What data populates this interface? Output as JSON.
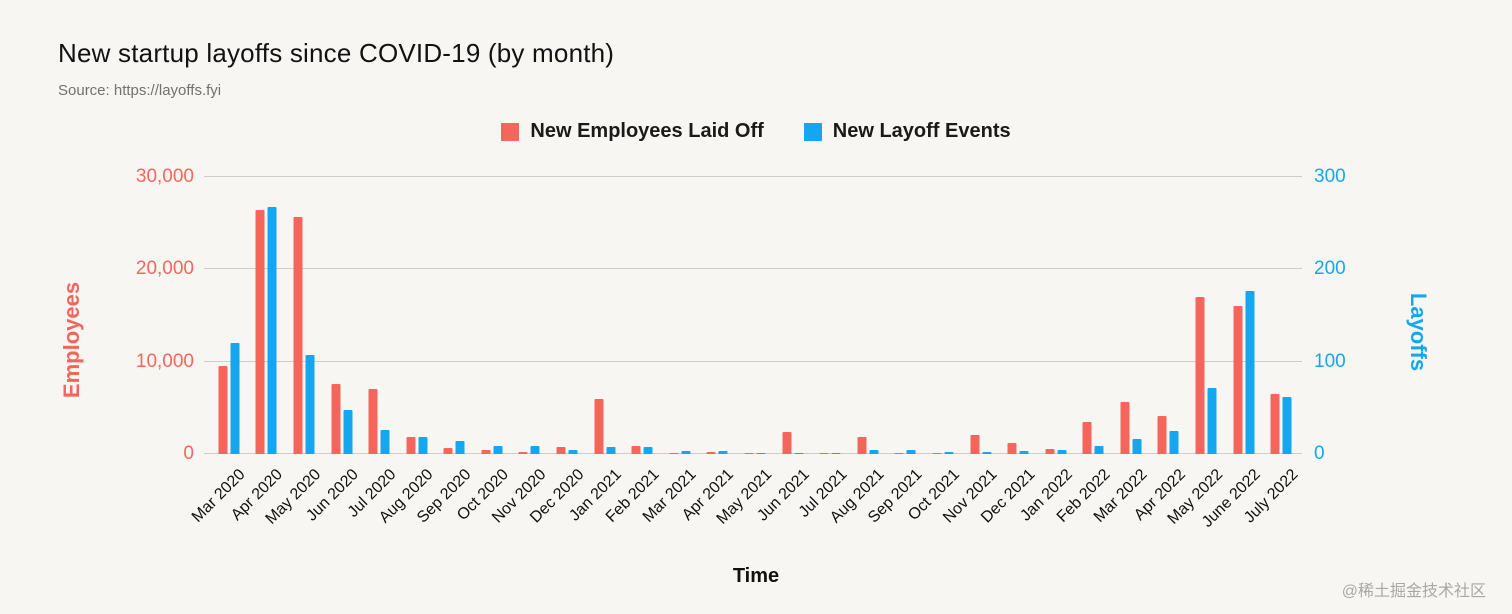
{
  "title": "New startup layoffs since COVID-19 (by month)",
  "source": "Source: https://layoffs.fyi",
  "watermark": "@稀土掘金技术社区",
  "colors": {
    "employees": "#f4665c",
    "events": "#14a7f0",
    "background": "#f7f6f3",
    "gridline": "#cdcdca",
    "text": "#111111",
    "muted": "#717171"
  },
  "chart_data": {
    "type": "bar",
    "title": "New startup layoffs since COVID-19 (by month)",
    "xlabel": "Time",
    "grid": true,
    "legend_position": "top",
    "categories": [
      "Mar 2020",
      "Apr 2020",
      "May 2020",
      "Jun 2020",
      "Jul 2020",
      "Aug 2020",
      "Sep 2020",
      "Oct 2020",
      "Nov 2020",
      "Dec 2020",
      "Jan 2021",
      "Feb 2021",
      "Mar 2021",
      "Apr 2021",
      "May 2021",
      "Jun 2021",
      "Jul 2021",
      "Aug 2021",
      "Sep 2021",
      "Oct 2021",
      "Nov 2021",
      "Dec 2021",
      "Jan 2022",
      "Feb 2022",
      "Mar 2022",
      "Apr 2022",
      "May 2022",
      "June 2022",
      "July 2022"
    ],
    "series": [
      {
        "name": "New Employees Laid Off",
        "axis": "left",
        "color": "#f4665c",
        "values": [
          9500,
          26400,
          25700,
          7600,
          7000,
          1800,
          650,
          450,
          250,
          800,
          6000,
          900,
          150,
          250,
          60,
          2400,
          60,
          1900,
          150,
          80,
          2100,
          1200,
          550,
          3500,
          5600,
          4100,
          17000,
          16000,
          6500
        ]
      },
      {
        "name": "New Layoff Events",
        "axis": "right",
        "color": "#14a7f0",
        "values": [
          120,
          268,
          107,
          48,
          26,
          18,
          14,
          9,
          9,
          4,
          8,
          8,
          3,
          3,
          1,
          1,
          1,
          4,
          4,
          2,
          2,
          3,
          4,
          9,
          16,
          25,
          72,
          177,
          62
        ]
      }
    ],
    "left_axis": {
      "label": "Employees",
      "max": 30000,
      "tick_values": [
        0,
        10000,
        20000,
        30000
      ],
      "tick_labels": [
        "0",
        "10,000",
        "20,000",
        "30,000"
      ]
    },
    "right_axis": {
      "label": "Layoffs",
      "max": 300,
      "tick_values": [
        0,
        100,
        200,
        300
      ],
      "tick_labels": [
        "0",
        "100",
        "200",
        "300"
      ]
    }
  }
}
